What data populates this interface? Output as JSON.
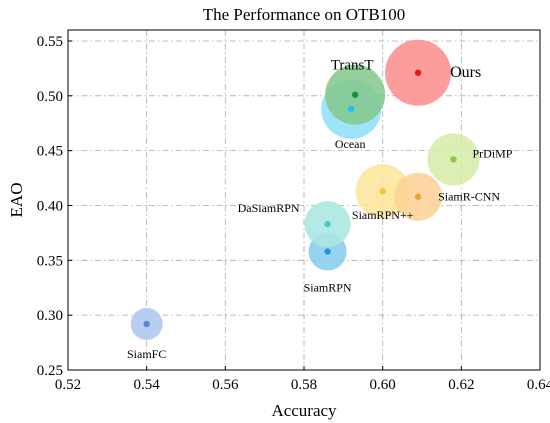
{
  "chart_data": {
    "type": "scatter",
    "title": "The Performance on OTB100",
    "xlabel": "Accuracy",
    "ylabel": "EAO",
    "xlim": [
      0.52,
      0.64
    ],
    "ylim": [
      0.25,
      0.56
    ],
    "xticks": [
      "0.52",
      "0.54",
      "0.56",
      "0.58",
      "0.60",
      "0.62",
      "0.64"
    ],
    "yticks": [
      "0.25",
      "0.30",
      "0.35",
      "0.40",
      "0.45",
      "0.50",
      "0.55"
    ],
    "grid": true,
    "points": [
      {
        "label": "SiamFC",
        "x": 0.54,
        "y": 0.292,
        "size": 16,
        "color": "#aec7ee",
        "dot": "#5b87d6"
      },
      {
        "label": "SiamRPN",
        "x": 0.586,
        "y": 0.358,
        "size": 19,
        "color": "#86cdee",
        "dot": "#1f96dc"
      },
      {
        "label": "DaSiamRPN",
        "x": 0.586,
        "y": 0.383,
        "size": 23,
        "color": "#aae7e3",
        "dot": "#4ac8d0"
      },
      {
        "label": "SiamRPN++",
        "x": 0.6,
        "y": 0.413,
        "size": 27,
        "color": "#fce69b",
        "dot": "#f2c632"
      },
      {
        "label": "SiamR-CNN",
        "x": 0.609,
        "y": 0.408,
        "size": 24,
        "color": "#fcd296",
        "dot": "#f2a42a"
      },
      {
        "label": "PrDiMP",
        "x": 0.618,
        "y": 0.442,
        "size": 26,
        "color": "#d6ecaa",
        "dot": "#8dc63f"
      },
      {
        "label": "Ocean",
        "x": 0.592,
        "y": 0.488,
        "size": 30,
        "color": "#8fe0fa",
        "dot": "#1ec0ee"
      },
      {
        "label": "TransT",
        "x": 0.593,
        "y": 0.501,
        "size": 30,
        "color": "#86c88e",
        "dot": "#1c8f3a"
      },
      {
        "label": "Ours",
        "x": 0.609,
        "y": 0.521,
        "size": 33,
        "color": "#fc8e8e",
        "dot": "#e8141a"
      }
    ]
  }
}
